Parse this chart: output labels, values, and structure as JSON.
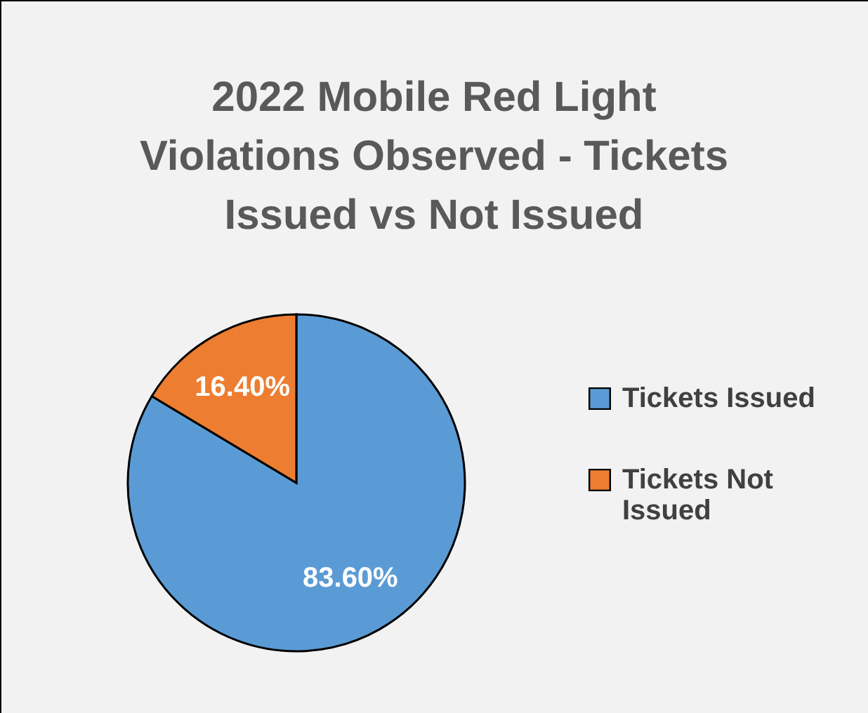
{
  "chart_data": {
    "type": "pie",
    "title": "2022 Mobile Red Light Violations Observed - Tickets Issued vs Not Issued",
    "categories": [
      "Tickets Issued",
      "Tickets Not Issued"
    ],
    "values": [
      83.6,
      16.4
    ],
    "colors": [
      "#5b9bd5",
      "#ed7d31"
    ],
    "value_labels": [
      "83.60%",
      "16.40%"
    ],
    "legend": "right"
  }
}
